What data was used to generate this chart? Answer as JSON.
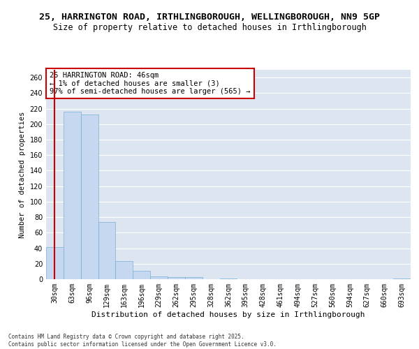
{
  "title_line1": "25, HARRINGTON ROAD, IRTHLINGBOROUGH, WELLINGBOROUGH, NN9 5GP",
  "title_line2": "Size of property relative to detached houses in Irthlingborough",
  "xlabel": "Distribution of detached houses by size in Irthlingborough",
  "ylabel": "Number of detached properties",
  "categories": [
    "30sqm",
    "63sqm",
    "96sqm",
    "129sqm",
    "163sqm",
    "196sqm",
    "229sqm",
    "262sqm",
    "295sqm",
    "328sqm",
    "362sqm",
    "395sqm",
    "428sqm",
    "461sqm",
    "494sqm",
    "527sqm",
    "560sqm",
    "594sqm",
    "627sqm",
    "660sqm",
    "693sqm"
  ],
  "values": [
    41,
    216,
    212,
    74,
    23,
    11,
    4,
    3,
    3,
    0,
    1,
    0,
    0,
    0,
    0,
    0,
    0,
    0,
    0,
    0,
    1
  ],
  "bar_color": "#c5d8f0",
  "bar_edge_color": "#7bafd4",
  "annotation_line1": "25 HARRINGTON ROAD: 46sqm",
  "annotation_line2": "← 1% of detached houses are smaller (3)",
  "annotation_line3": "97% of semi-detached houses are larger (565) →",
  "annotation_box_color": "#ffffff",
  "annotation_box_edge_color": "#cc0000",
  "vline_color": "#cc0000",
  "ylim": [
    0,
    270
  ],
  "yticks": [
    0,
    20,
    40,
    60,
    80,
    100,
    120,
    140,
    160,
    180,
    200,
    220,
    240,
    260
  ],
  "background_color": "#dde6f0",
  "footer_line1": "Contains HM Land Registry data © Crown copyright and database right 2025.",
  "footer_line2": "Contains public sector information licensed under the Open Government Licence v3.0.",
  "title_fontsize": 9.5,
  "subtitle_fontsize": 8.5,
  "tick_fontsize": 7,
  "xlabel_fontsize": 8,
  "ylabel_fontsize": 7.5,
  "annotation_fontsize": 7.5,
  "footer_fontsize": 5.5
}
